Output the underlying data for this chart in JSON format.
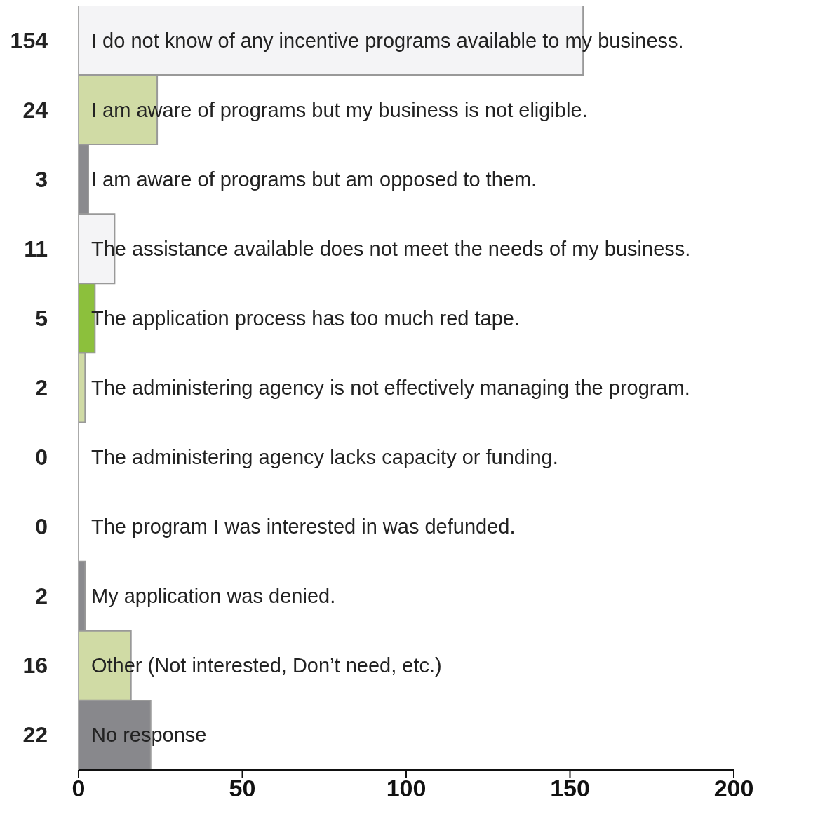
{
  "chart_data": {
    "type": "bar",
    "orientation": "horizontal",
    "categories": [
      "I do not know of any incentive programs available to my business.",
      "I am aware of programs but my business is not eligible.",
      "I am aware of programs but am opposed to them.",
      "The assistance available does not meet the needs of  my business.",
      "The application process has too much red tape.",
      "The administering agency is not effectively managing the program.",
      "The administering agency lacks capacity or funding.",
      "The program I was interested in was defunded.",
      "My application was denied.",
      "Other (Not interested, Don’t need, etc.)",
      "No response"
    ],
    "values": [
      154,
      24,
      3,
      11,
      5,
      2,
      0,
      0,
      2,
      16,
      22
    ],
    "colors": [
      "#f4f4f6",
      "#d0dba5",
      "#8a8a8e",
      "#f4f4f6",
      "#8cc03c",
      "#d0dba5",
      "#f4f4f6",
      "#f4f4f6",
      "#8a8a8e",
      "#d0dba5",
      "#88888c"
    ],
    "xlim": [
      0,
      200
    ],
    "xticks": [
      0,
      50,
      100,
      150,
      200
    ],
    "data_labels": true,
    "grid": false,
    "legend": false
  }
}
